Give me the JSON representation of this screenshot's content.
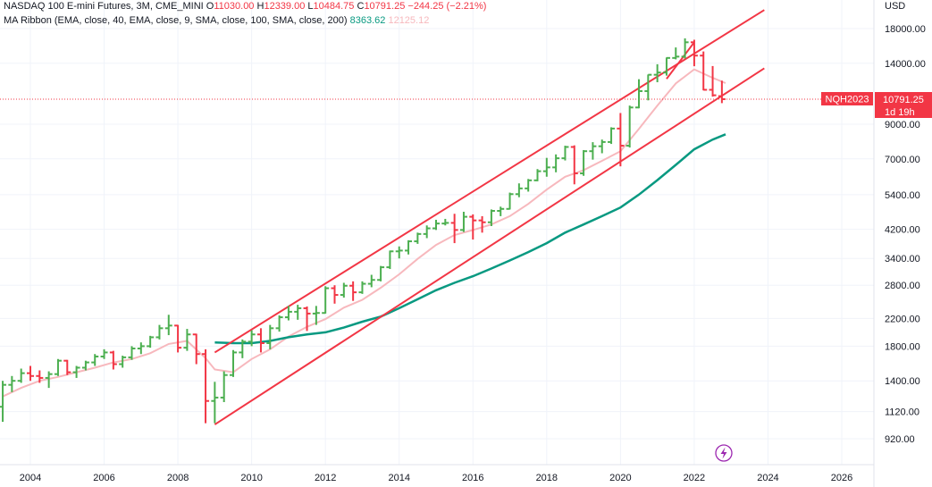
{
  "legend": {
    "symbol": "NASDAQ 100 E-mini Futures, 3M, CME_MINI",
    "o_label": "O",
    "o_value": "11030.00",
    "h_label": "H",
    "h_value": "12339.00",
    "l_label": "L",
    "l_value": "10484.75",
    "c_label": "C",
    "c_value": "10791.25",
    "change": "−244.25 (−2.21%)",
    "ribbon_name": "MA Ribbon (EMA, close, 40, EMA, close, 9, SMA, close, 100, SMA, close, 200)",
    "ribbon_value_1": "8363.62",
    "ribbon_value_2": "12125.12"
  },
  "price_tag": {
    "symbol": "NQH2023",
    "price": "10791.25",
    "countdown": "1d 19h"
  },
  "colors": {
    "up": "#4caf50",
    "down": "#f23645",
    "ma_long": "#089981",
    "ma_short": "#f7b8bd",
    "channel": "#f23645",
    "accent": "#9c27b0"
  },
  "icons": {
    "replay": "lightning-icon"
  },
  "chart_data": {
    "type": "ohlc",
    "title": "NASDAQ 100 E-mini Futures, 3M, CME_MINI",
    "scale": "log",
    "currency": "USD",
    "y_ticks": [
      920,
      1120,
      1400,
      1800,
      2200,
      2800,
      3400,
      4200,
      5400,
      7000,
      9000,
      14000,
      18000
    ],
    "y_tick_labels": [
      "920.00",
      "1120.00",
      "1400.00",
      "1800.00",
      "2200.00",
      "2800.00",
      "3400.00",
      "4200.00",
      "5400.00",
      "7000.00",
      "9000.00",
      "14000.00",
      "18000.00"
    ],
    "x_ticks": [
      "2004",
      "2006",
      "2008",
      "2010",
      "2012",
      "2014",
      "2016",
      "2018",
      "2020",
      "2022",
      "2024",
      "2026"
    ],
    "bars": [
      {
        "t": 2003.25,
        "o": 1160,
        "h": 1400,
        "l": 1040,
        "c": 1360
      },
      {
        "t": 2003.5,
        "o": 1360,
        "h": 1450,
        "l": 1290,
        "c": 1400
      },
      {
        "t": 2003.75,
        "o": 1400,
        "h": 1530,
        "l": 1380,
        "c": 1480
      },
      {
        "t": 2004.0,
        "o": 1480,
        "h": 1560,
        "l": 1400,
        "c": 1450
      },
      {
        "t": 2004.25,
        "o": 1450,
        "h": 1510,
        "l": 1380,
        "c": 1430
      },
      {
        "t": 2004.5,
        "o": 1430,
        "h": 1500,
        "l": 1330,
        "c": 1470
      },
      {
        "t": 2004.75,
        "o": 1470,
        "h": 1640,
        "l": 1450,
        "c": 1620
      },
      {
        "t": 2005.0,
        "o": 1620,
        "h": 1630,
        "l": 1460,
        "c": 1490
      },
      {
        "t": 2005.25,
        "o": 1490,
        "h": 1560,
        "l": 1430,
        "c": 1540
      },
      {
        "t": 2005.5,
        "o": 1540,
        "h": 1620,
        "l": 1510,
        "c": 1600
      },
      {
        "t": 2005.75,
        "o": 1600,
        "h": 1700,
        "l": 1560,
        "c": 1670
      },
      {
        "t": 2006.0,
        "o": 1670,
        "h": 1760,
        "l": 1640,
        "c": 1720
      },
      {
        "t": 2006.25,
        "o": 1720,
        "h": 1740,
        "l": 1520,
        "c": 1580
      },
      {
        "t": 2006.5,
        "o": 1580,
        "h": 1680,
        "l": 1540,
        "c": 1660
      },
      {
        "t": 2006.75,
        "o": 1660,
        "h": 1800,
        "l": 1630,
        "c": 1770
      },
      {
        "t": 2007.0,
        "o": 1770,
        "h": 1850,
        "l": 1700,
        "c": 1800
      },
      {
        "t": 2007.25,
        "o": 1800,
        "h": 1940,
        "l": 1780,
        "c": 1920
      },
      {
        "t": 2007.5,
        "o": 1920,
        "h": 2100,
        "l": 1890,
        "c": 2050
      },
      {
        "t": 2007.75,
        "o": 2050,
        "h": 2260,
        "l": 1950,
        "c": 2090
      },
      {
        "t": 2008.0,
        "o": 2090,
        "h": 2100,
        "l": 1720,
        "c": 1780
      },
      {
        "t": 2008.25,
        "o": 1780,
        "h": 2040,
        "l": 1740,
        "c": 1960
      },
      {
        "t": 2008.5,
        "o": 1960,
        "h": 1970,
        "l": 1580,
        "c": 1700
      },
      {
        "t": 2008.75,
        "o": 1700,
        "h": 1760,
        "l": 1030,
        "c": 1210
      },
      {
        "t": 2009.0,
        "o": 1210,
        "h": 1390,
        "l": 1030,
        "c": 1240
      },
      {
        "t": 2009.25,
        "o": 1240,
        "h": 1500,
        "l": 1200,
        "c": 1460
      },
      {
        "t": 2009.5,
        "o": 1460,
        "h": 1750,
        "l": 1440,
        "c": 1720
      },
      {
        "t": 2009.75,
        "o": 1720,
        "h": 1890,
        "l": 1650,
        "c": 1860
      },
      {
        "t": 2010.0,
        "o": 1860,
        "h": 2020,
        "l": 1800,
        "c": 1960
      },
      {
        "t": 2010.25,
        "o": 1960,
        "h": 2050,
        "l": 1720,
        "c": 1840
      },
      {
        "t": 2010.5,
        "o": 1840,
        "h": 2100,
        "l": 1760,
        "c": 2050
      },
      {
        "t": 2010.75,
        "o": 2050,
        "h": 2250,
        "l": 2000,
        "c": 2220
      },
      {
        "t": 2011.0,
        "o": 2220,
        "h": 2410,
        "l": 2170,
        "c": 2310
      },
      {
        "t": 2011.25,
        "o": 2310,
        "h": 2430,
        "l": 2180,
        "c": 2370
      },
      {
        "t": 2011.5,
        "o": 2370,
        "h": 2400,
        "l": 2010,
        "c": 2280
      },
      {
        "t": 2011.75,
        "o": 2280,
        "h": 2410,
        "l": 2100,
        "c": 2290
      },
      {
        "t": 2012.0,
        "o": 2290,
        "h": 2780,
        "l": 2280,
        "c": 2740
      },
      {
        "t": 2012.25,
        "o": 2740,
        "h": 2800,
        "l": 2450,
        "c": 2610
      },
      {
        "t": 2012.5,
        "o": 2610,
        "h": 2850,
        "l": 2560,
        "c": 2790
      },
      {
        "t": 2012.75,
        "o": 2790,
        "h": 2880,
        "l": 2500,
        "c": 2660
      },
      {
        "t": 2013.0,
        "o": 2660,
        "h": 2880,
        "l": 2630,
        "c": 2830
      },
      {
        "t": 2013.25,
        "o": 2830,
        "h": 3020,
        "l": 2760,
        "c": 2910
      },
      {
        "t": 2013.5,
        "o": 2910,
        "h": 3220,
        "l": 2880,
        "c": 3190
      },
      {
        "t": 2013.75,
        "o": 3190,
        "h": 3600,
        "l": 3150,
        "c": 3580
      },
      {
        "t": 2014.0,
        "o": 3580,
        "h": 3710,
        "l": 3400,
        "c": 3600
      },
      {
        "t": 2014.25,
        "o": 3600,
        "h": 3880,
        "l": 3500,
        "c": 3850
      },
      {
        "t": 2014.5,
        "o": 3850,
        "h": 4100,
        "l": 3780,
        "c": 4060
      },
      {
        "t": 2014.75,
        "o": 4060,
        "h": 4320,
        "l": 3940,
        "c": 4230
      },
      {
        "t": 2015.0,
        "o": 4230,
        "h": 4500,
        "l": 4180,
        "c": 4380
      },
      {
        "t": 2015.25,
        "o": 4380,
        "h": 4530,
        "l": 4320,
        "c": 4400
      },
      {
        "t": 2015.5,
        "o": 4400,
        "h": 4700,
        "l": 3800,
        "c": 4180
      },
      {
        "t": 2015.75,
        "o": 4180,
        "h": 4770,
        "l": 4120,
        "c": 4600
      },
      {
        "t": 2016.0,
        "o": 4600,
        "h": 4680,
        "l": 3900,
        "c": 4480
      },
      {
        "t": 2016.25,
        "o": 4480,
        "h": 4620,
        "l": 4100,
        "c": 4420
      },
      {
        "t": 2016.5,
        "o": 4420,
        "h": 4850,
        "l": 4300,
        "c": 4800
      },
      {
        "t": 2016.75,
        "o": 4800,
        "h": 4950,
        "l": 4620,
        "c": 4870
      },
      {
        "t": 2017.0,
        "o": 4870,
        "h": 5480,
        "l": 4850,
        "c": 5420
      },
      {
        "t": 2017.25,
        "o": 5420,
        "h": 5860,
        "l": 5300,
        "c": 5650
      },
      {
        "t": 2017.5,
        "o": 5650,
        "h": 6050,
        "l": 5520,
        "c": 5990
      },
      {
        "t": 2017.75,
        "o": 5990,
        "h": 6500,
        "l": 5950,
        "c": 6400
      },
      {
        "t": 2018.0,
        "o": 6400,
        "h": 7050,
        "l": 6150,
        "c": 6580
      },
      {
        "t": 2018.25,
        "o": 6580,
        "h": 7230,
        "l": 6350,
        "c": 7030
      },
      {
        "t": 2018.5,
        "o": 7030,
        "h": 7700,
        "l": 6920,
        "c": 7630
      },
      {
        "t": 2018.75,
        "o": 7630,
        "h": 7720,
        "l": 5820,
        "c": 6300
      },
      {
        "t": 2019.0,
        "o": 6300,
        "h": 7460,
        "l": 6190,
        "c": 7400
      },
      {
        "t": 2019.25,
        "o": 7400,
        "h": 7900,
        "l": 6960,
        "c": 7670
      },
      {
        "t": 2019.5,
        "o": 7670,
        "h": 8050,
        "l": 7290,
        "c": 7910
      },
      {
        "t": 2019.75,
        "o": 7910,
        "h": 8800,
        "l": 7800,
        "c": 8720
      },
      {
        "t": 2020.0,
        "o": 8720,
        "h": 9760,
        "l": 6630,
        "c": 7700
      },
      {
        "t": 2020.25,
        "o": 7700,
        "h": 10300,
        "l": 7600,
        "c": 10160
      },
      {
        "t": 2020.5,
        "o": 10160,
        "h": 12470,
        "l": 10100,
        "c": 11440
      },
      {
        "t": 2020.75,
        "o": 11440,
        "h": 12900,
        "l": 10700,
        "c": 12880
      },
      {
        "t": 2021.0,
        "o": 12880,
        "h": 13900,
        "l": 12200,
        "c": 13090
      },
      {
        "t": 2021.25,
        "o": 13090,
        "h": 14600,
        "l": 12800,
        "c": 14550
      },
      {
        "t": 2021.5,
        "o": 14550,
        "h": 15700,
        "l": 14400,
        "c": 14690
      },
      {
        "t": 2021.75,
        "o": 14690,
        "h": 16770,
        "l": 14490,
        "c": 16300
      },
      {
        "t": 2022.0,
        "o": 16300,
        "h": 16600,
        "l": 13700,
        "c": 14800
      },
      {
        "t": 2022.25,
        "o": 14800,
        "h": 15250,
        "l": 11500,
        "c": 11550
      },
      {
        "t": 2022.5,
        "o": 11550,
        "h": 13720,
        "l": 10990,
        "c": 11100
      },
      {
        "t": 2022.75,
        "o": 11030,
        "h": 12339,
        "l": 10484.75,
        "c": 10791.25
      }
    ],
    "ma_long": [
      [
        2009.0,
        1850
      ],
      [
        2009.5,
        1840
      ],
      [
        2010.0,
        1840
      ],
      [
        2010.5,
        1870
      ],
      [
        2011.0,
        1920
      ],
      [
        2011.5,
        1960
      ],
      [
        2012.0,
        1990
      ],
      [
        2012.5,
        2060
      ],
      [
        2013.0,
        2150
      ],
      [
        2013.5,
        2230
      ],
      [
        2014.0,
        2370
      ],
      [
        2014.5,
        2530
      ],
      [
        2015.0,
        2700
      ],
      [
        2015.5,
        2850
      ],
      [
        2016.0,
        2990
      ],
      [
        2016.5,
        3160
      ],
      [
        2017.0,
        3350
      ],
      [
        2017.5,
        3560
      ],
      [
        2018.0,
        3800
      ],
      [
        2018.5,
        4100
      ],
      [
        2019.0,
        4350
      ],
      [
        2019.5,
        4620
      ],
      [
        2020.0,
        4920
      ],
      [
        2020.5,
        5400
      ],
      [
        2021.0,
        6000
      ],
      [
        2021.5,
        6700
      ],
      [
        2022.0,
        7500
      ],
      [
        2022.5,
        8050
      ],
      [
        2022.85,
        8363.62
      ]
    ],
    "ma_short": [
      [
        2003.25,
        1250
      ],
      [
        2003.75,
        1330
      ],
      [
        2004.25,
        1400
      ],
      [
        2004.75,
        1440
      ],
      [
        2005.25,
        1490
      ],
      [
        2005.75,
        1540
      ],
      [
        2006.25,
        1600
      ],
      [
        2006.75,
        1640
      ],
      [
        2007.25,
        1710
      ],
      [
        2007.75,
        1830
      ],
      [
        2008.25,
        1870
      ],
      [
        2008.75,
        1650
      ],
      [
        2009.0,
        1520
      ],
      [
        2009.5,
        1490
      ],
      [
        2010.0,
        1640
      ],
      [
        2010.5,
        1760
      ],
      [
        2011.0,
        1930
      ],
      [
        2011.5,
        2070
      ],
      [
        2012.0,
        2190
      ],
      [
        2012.5,
        2380
      ],
      [
        2013.0,
        2520
      ],
      [
        2013.5,
        2750
      ],
      [
        2014.0,
        3030
      ],
      [
        2014.5,
        3390
      ],
      [
        2015.0,
        3750
      ],
      [
        2015.5,
        4030
      ],
      [
        2016.0,
        4180
      ],
      [
        2016.5,
        4350
      ],
      [
        2017.0,
        4620
      ],
      [
        2017.5,
        5050
      ],
      [
        2018.0,
        5600
      ],
      [
        2018.5,
        6150
      ],
      [
        2019.0,
        6450
      ],
      [
        2019.5,
        6900
      ],
      [
        2020.0,
        7400
      ],
      [
        2020.5,
        8700
      ],
      [
        2021.0,
        10300
      ],
      [
        2021.5,
        12100
      ],
      [
        2022.0,
        13400
      ],
      [
        2022.5,
        12600
      ],
      [
        2022.85,
        12125.12
      ]
    ],
    "channel_upper": [
      [
        2009.0,
        1720
      ],
      [
        2023.9,
        20600
      ]
    ],
    "channel_lower": [
      [
        2009.0,
        1020
      ],
      [
        2023.9,
        13500
      ]
    ],
    "wedge_line": [
      [
        2021.25,
        12500
      ],
      [
        2022.0,
        16300
      ]
    ]
  }
}
